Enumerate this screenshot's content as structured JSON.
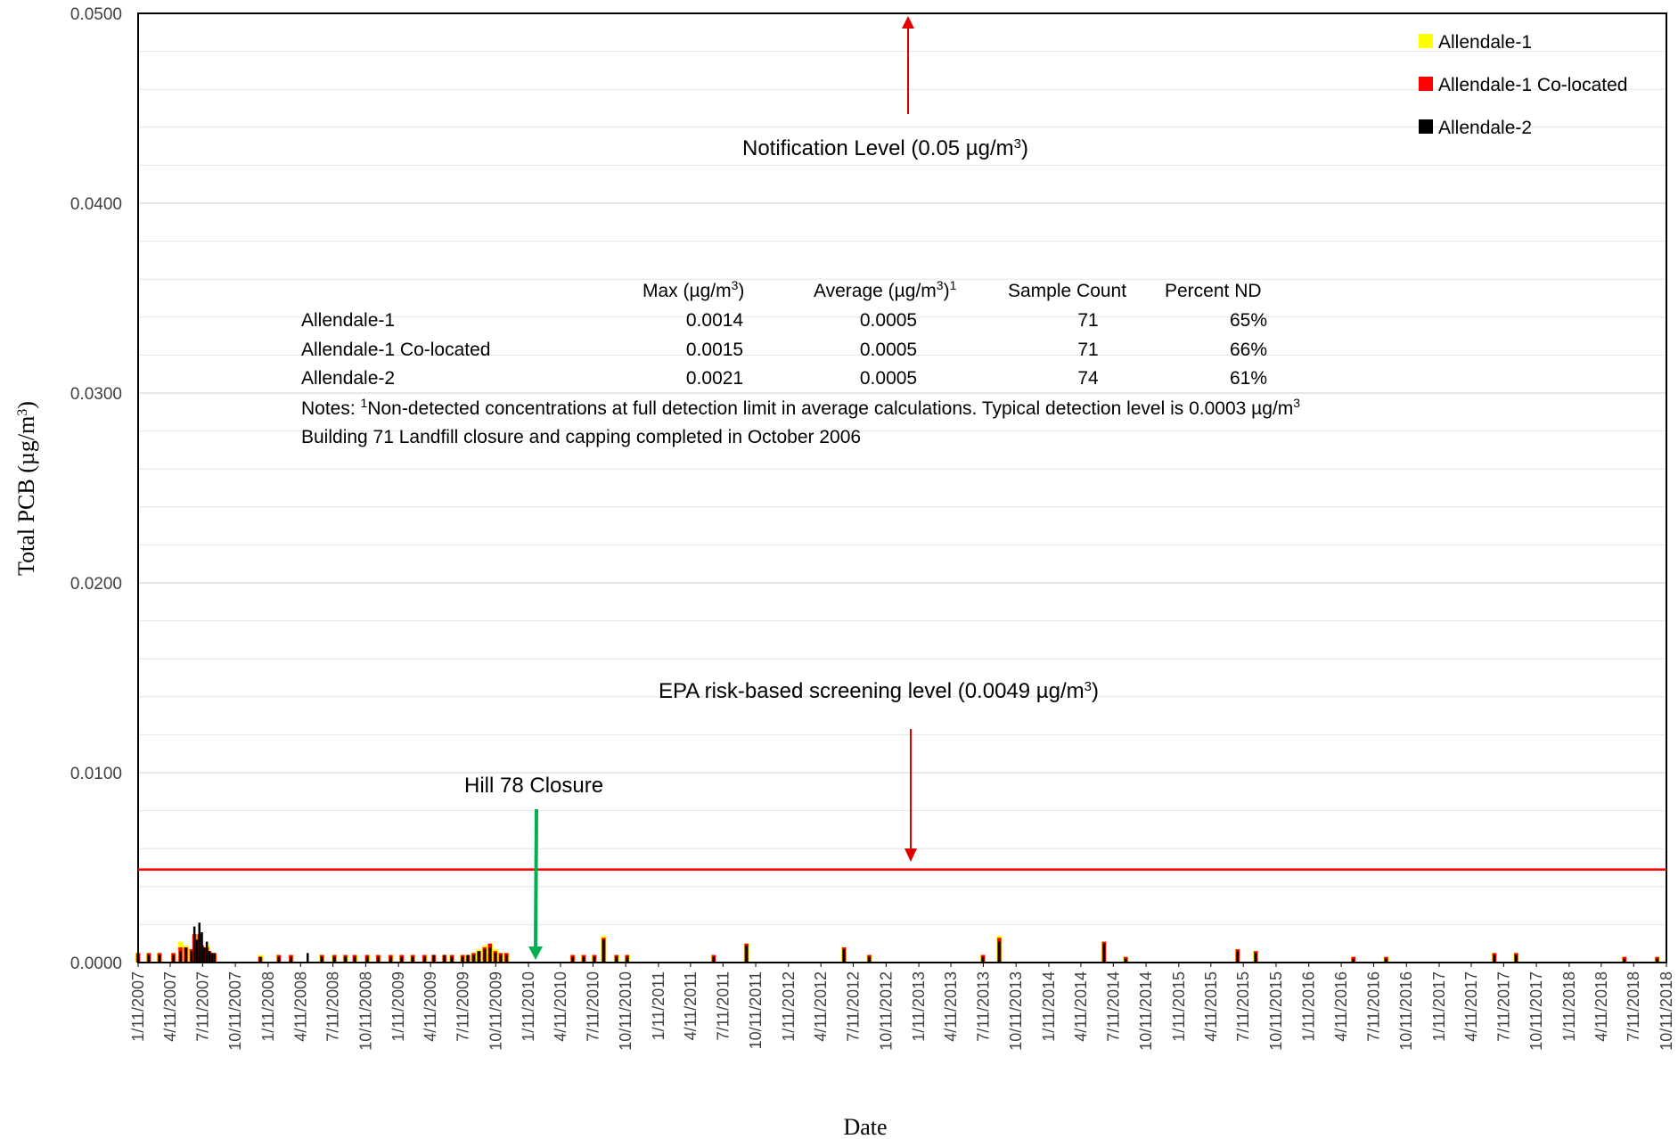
{
  "chart_data": {
    "type": "bar",
    "xlabel": "Date",
    "ylabel": "Total PCB (µg/m³)",
    "ylim": [
      0,
      0.05
    ],
    "yticks": [
      "0.0000",
      "0.0100",
      "0.0200",
      "0.0300",
      "0.0400",
      "0.0500"
    ],
    "xlim": [
      "2007-01-11",
      "2018-10-11"
    ],
    "xtick_labels": [
      "1/11/2007",
      "4/11/2007",
      "7/11/2007",
      "10/11/2007",
      "1/11/2008",
      "4/11/2008",
      "7/11/2008",
      "10/11/2008",
      "1/11/2009",
      "4/11/2009",
      "7/11/2009",
      "10/11/2009",
      "1/11/2010",
      "4/11/2010",
      "7/11/2010",
      "10/11/2010",
      "1/11/2011",
      "4/11/2011",
      "7/11/2011",
      "10/11/2011",
      "1/11/2012",
      "4/11/2012",
      "7/11/2012",
      "10/11/2012",
      "1/11/2013",
      "4/11/2013",
      "7/11/2013",
      "10/11/2013",
      "1/11/2014",
      "4/11/2014",
      "7/11/2014",
      "10/11/2014",
      "1/11/2015",
      "4/11/2015",
      "7/11/2015",
      "10/11/2015",
      "1/11/2016",
      "4/11/2016",
      "7/11/2016",
      "10/11/2016",
      "1/11/2017",
      "4/11/2017",
      "7/11/2017",
      "10/11/2017",
      "1/11/2018",
      "4/11/2018",
      "7/11/2018",
      "10/11/2018"
    ],
    "grid": true,
    "legend": "top-right",
    "series": [
      {
        "name": "Allendale-1",
        "color": "#ffff00",
        "points": [
          [
            "2007-01-11",
            0.0005
          ],
          [
            "2007-02-10",
            0.0005
          ],
          [
            "2007-03-12",
            0.0005
          ],
          [
            "2007-04-20",
            0.0005
          ],
          [
            "2007-05-10",
            0.0011
          ],
          [
            "2007-05-25",
            0.0009
          ],
          [
            "2007-06-10",
            0.0007
          ],
          [
            "2007-06-18",
            0.0014
          ],
          [
            "2007-06-25",
            0.001
          ],
          [
            "2007-07-02",
            0.0012
          ],
          [
            "2007-07-09",
            0.0008
          ],
          [
            "2007-07-16",
            0.0006
          ],
          [
            "2007-07-23",
            0.0009
          ],
          [
            "2007-07-30",
            0.0006
          ],
          [
            "2007-08-06",
            0.0005
          ],
          [
            "2007-08-13",
            0.0005
          ],
          [
            "2007-12-20",
            0.0004
          ],
          [
            "2008-02-10",
            0.0004
          ],
          [
            "2008-03-15",
            0.0004
          ],
          [
            "2008-06-10",
            0.0004
          ],
          [
            "2008-07-15",
            0.0004
          ],
          [
            "2008-08-15",
            0.0004
          ],
          [
            "2008-09-10",
            0.0004
          ],
          [
            "2008-10-15",
            0.0004
          ],
          [
            "2008-11-15",
            0.0004
          ],
          [
            "2008-12-20",
            0.0004
          ],
          [
            "2009-01-20",
            0.0004
          ],
          [
            "2009-02-20",
            0.0004
          ],
          [
            "2009-03-25",
            0.0004
          ],
          [
            "2009-04-20",
            0.0004
          ],
          [
            "2009-05-20",
            0.0004
          ],
          [
            "2009-06-10",
            0.0004
          ],
          [
            "2009-07-10",
            0.0004
          ],
          [
            "2009-07-25",
            0.0004
          ],
          [
            "2009-08-10",
            0.0005
          ],
          [
            "2009-08-25",
            0.0007
          ],
          [
            "2009-09-10",
            0.0009
          ],
          [
            "2009-09-25",
            0.001
          ],
          [
            "2009-10-10",
            0.0007
          ],
          [
            "2009-10-25",
            0.0005
          ],
          [
            "2009-11-10",
            0.0005
          ],
          [
            "2010-05-15",
            0.0004
          ],
          [
            "2010-06-15",
            0.0004
          ],
          [
            "2010-07-15",
            0.0004
          ],
          [
            "2010-08-10",
            0.0014
          ],
          [
            "2010-09-15",
            0.0004
          ],
          [
            "2010-10-15",
            0.0004
          ],
          [
            "2011-06-15",
            0.0004
          ],
          [
            "2011-09-15",
            0.001
          ],
          [
            "2012-06-15",
            0.0008
          ],
          [
            "2012-08-25",
            0.0004
          ],
          [
            "2013-07-10",
            0.0004
          ],
          [
            "2013-08-25",
            0.0014
          ],
          [
            "2014-06-15",
            0.0011
          ],
          [
            "2014-08-15",
            0.0003
          ],
          [
            "2015-06-25",
            0.0007
          ],
          [
            "2015-08-15",
            0.0006
          ],
          [
            "2016-05-15",
            0.0003
          ],
          [
            "2016-08-15",
            0.0003
          ],
          [
            "2017-06-15",
            0.0005
          ],
          [
            "2017-08-15",
            0.0005
          ],
          [
            "2018-06-15",
            0.0003
          ],
          [
            "2018-09-15",
            0.0003
          ]
        ]
      },
      {
        "name": "Allendale-1 Co-located",
        "color": "#ff0000",
        "points": [
          [
            "2007-01-11",
            0.0005
          ],
          [
            "2007-02-10",
            0.0005
          ],
          [
            "2007-03-12",
            0.0005
          ],
          [
            "2007-04-20",
            0.0005
          ],
          [
            "2007-05-10",
            0.0008
          ],
          [
            "2007-05-25",
            0.0008
          ],
          [
            "2007-06-10",
            0.0007
          ],
          [
            "2007-06-18",
            0.0015
          ],
          [
            "2007-06-25",
            0.0012
          ],
          [
            "2007-07-02",
            0.0015
          ],
          [
            "2007-07-09",
            0.0009
          ],
          [
            "2007-07-16",
            0.0006
          ],
          [
            "2007-07-23",
            0.0008
          ],
          [
            "2007-07-30",
            0.0006
          ],
          [
            "2007-08-06",
            0.0005
          ],
          [
            "2007-08-13",
            0.0005
          ],
          [
            "2007-12-20",
            0.0003
          ],
          [
            "2008-02-10",
            0.0004
          ],
          [
            "2008-03-15",
            0.0004
          ],
          [
            "2008-06-10",
            0.0004
          ],
          [
            "2008-07-15",
            0.0004
          ],
          [
            "2008-08-15",
            0.0004
          ],
          [
            "2008-09-10",
            0.0004
          ],
          [
            "2008-10-15",
            0.0004
          ],
          [
            "2008-11-15",
            0.0004
          ],
          [
            "2008-12-20",
            0.0004
          ],
          [
            "2009-01-20",
            0.0004
          ],
          [
            "2009-02-20",
            0.0004
          ],
          [
            "2009-03-25",
            0.0004
          ],
          [
            "2009-04-20",
            0.0004
          ],
          [
            "2009-05-20",
            0.0004
          ],
          [
            "2009-06-10",
            0.0004
          ],
          [
            "2009-07-10",
            0.0004
          ],
          [
            "2009-07-25",
            0.0004
          ],
          [
            "2009-08-10",
            0.0005
          ],
          [
            "2009-08-25",
            0.0006
          ],
          [
            "2009-09-10",
            0.0008
          ],
          [
            "2009-09-25",
            0.001
          ],
          [
            "2009-10-10",
            0.0006
          ],
          [
            "2009-10-25",
            0.0005
          ],
          [
            "2009-11-10",
            0.0005
          ],
          [
            "2010-05-15",
            0.0004
          ],
          [
            "2010-06-15",
            0.0004
          ],
          [
            "2010-07-15",
            0.0004
          ],
          [
            "2010-08-10",
            0.0013
          ],
          [
            "2010-09-15",
            0.0004
          ],
          [
            "2010-10-15",
            0.0004
          ],
          [
            "2011-06-15",
            0.0004
          ],
          [
            "2011-09-15",
            0.001
          ],
          [
            "2012-06-15",
            0.0008
          ],
          [
            "2012-08-25",
            0.0004
          ],
          [
            "2013-07-10",
            0.0004
          ],
          [
            "2013-08-25",
            0.0013
          ],
          [
            "2014-06-15",
            0.0011
          ],
          [
            "2014-08-15",
            0.0003
          ],
          [
            "2015-06-25",
            0.0007
          ],
          [
            "2015-08-15",
            0.0006
          ],
          [
            "2016-05-15",
            0.0003
          ],
          [
            "2016-08-15",
            0.0003
          ],
          [
            "2017-06-15",
            0.0005
          ],
          [
            "2017-08-15",
            0.0005
          ],
          [
            "2018-06-15",
            0.0003
          ],
          [
            "2018-09-15",
            0.0003
          ]
        ]
      },
      {
        "name": "Allendale-2",
        "color": "#000000",
        "points": [
          [
            "2007-01-11",
            0.0004
          ],
          [
            "2007-02-10",
            0.0004
          ],
          [
            "2007-03-12",
            0.0004
          ],
          [
            "2007-04-20",
            0.0004
          ],
          [
            "2007-05-10",
            0.0006
          ],
          [
            "2007-05-25",
            0.0008
          ],
          [
            "2007-06-10",
            0.0006
          ],
          [
            "2007-06-18",
            0.0019
          ],
          [
            "2007-06-25",
            0.0012
          ],
          [
            "2007-07-02",
            0.0021
          ],
          [
            "2007-07-09",
            0.0016
          ],
          [
            "2007-07-16",
            0.0008
          ],
          [
            "2007-07-23",
            0.0011
          ],
          [
            "2007-07-30",
            0.0006
          ],
          [
            "2007-08-06",
            0.0005
          ],
          [
            "2007-08-13",
            0.0005
          ],
          [
            "2007-12-20",
            0.0003
          ],
          [
            "2008-02-10",
            0.0003
          ],
          [
            "2008-03-15",
            0.0003
          ],
          [
            "2008-05-01",
            0.0005
          ],
          [
            "2008-06-10",
            0.0003
          ],
          [
            "2008-07-15",
            0.0003
          ],
          [
            "2008-08-15",
            0.0003
          ],
          [
            "2008-09-10",
            0.0003
          ],
          [
            "2008-10-15",
            0.0003
          ],
          [
            "2008-11-15",
            0.0003
          ],
          [
            "2008-12-20",
            0.0003
          ],
          [
            "2009-01-20",
            0.0003
          ],
          [
            "2009-02-20",
            0.0003
          ],
          [
            "2009-03-25",
            0.0003
          ],
          [
            "2009-04-20",
            0.0004
          ],
          [
            "2009-05-20",
            0.0004
          ],
          [
            "2009-06-10",
            0.0003
          ],
          [
            "2009-07-10",
            0.0003
          ],
          [
            "2009-07-25",
            0.0004
          ],
          [
            "2009-08-10",
            0.0004
          ],
          [
            "2009-08-25",
            0.0006
          ],
          [
            "2009-09-10",
            0.0007
          ],
          [
            "2009-09-25",
            0.0008
          ],
          [
            "2009-10-10",
            0.0005
          ],
          [
            "2009-10-25",
            0.0004
          ],
          [
            "2009-11-10",
            0.0004
          ],
          [
            "2010-05-15",
            0.0003
          ],
          [
            "2010-06-15",
            0.0003
          ],
          [
            "2010-07-15",
            0.0003
          ],
          [
            "2010-08-10",
            0.0012
          ],
          [
            "2010-09-15",
            0.0003
          ],
          [
            "2010-10-15",
            0.0003
          ],
          [
            "2011-06-15",
            0.0003
          ],
          [
            "2011-09-15",
            0.0009
          ],
          [
            "2012-06-15",
            0.0007
          ],
          [
            "2012-08-25",
            0.0003
          ],
          [
            "2013-07-10",
            0.0003
          ],
          [
            "2013-08-25",
            0.0011
          ],
          [
            "2014-06-15",
            0.001
          ],
          [
            "2014-08-15",
            0.0002
          ],
          [
            "2015-06-25",
            0.0006
          ],
          [
            "2015-08-15",
            0.0005
          ],
          [
            "2016-05-15",
            0.0002
          ],
          [
            "2016-08-15",
            0.0002
          ],
          [
            "2017-06-15",
            0.0004
          ],
          [
            "2017-08-15",
            0.0004
          ],
          [
            "2018-06-15",
            0.0002
          ],
          [
            "2018-09-15",
            0.0002
          ]
        ]
      }
    ],
    "reference_lines": [
      {
        "label": "EPA risk-based screening level (0.0049 µg/m³)",
        "value": 0.0049,
        "color": "#ff0000"
      },
      {
        "label": "Notification Level (0.05 µg/m³)",
        "value": 0.05,
        "color": "#ff0000"
      }
    ],
    "annotations": [
      {
        "label": "Hill 78 Closure",
        "date": "2010-01-20",
        "color": "#00b050"
      }
    ]
  },
  "stats_table": {
    "headers": [
      "Max (µg/m³)",
      "Average (µg/m³)¹",
      "Sample Count",
      "Percent ND"
    ],
    "rows": [
      {
        "site": "Allendale-1",
        "max": "0.0014",
        "avg": "0.0005",
        "count": "71",
        "nd": "65%"
      },
      {
        "site": "Allendale-1 Co-located",
        "max": "0.0015",
        "avg": "0.0005",
        "count": "71",
        "nd": "66%"
      },
      {
        "site": "Allendale-2",
        "max": "0.0021",
        "avg": "0.0005",
        "count": "74",
        "nd": "61%"
      }
    ],
    "note1": "Notes: ¹Non-detected concentrations at full detection limit in average calculations.  Typical detection level is 0.0003 µg/m³",
    "note2": "Building 71 Landfill closure and capping completed in October 2006"
  }
}
